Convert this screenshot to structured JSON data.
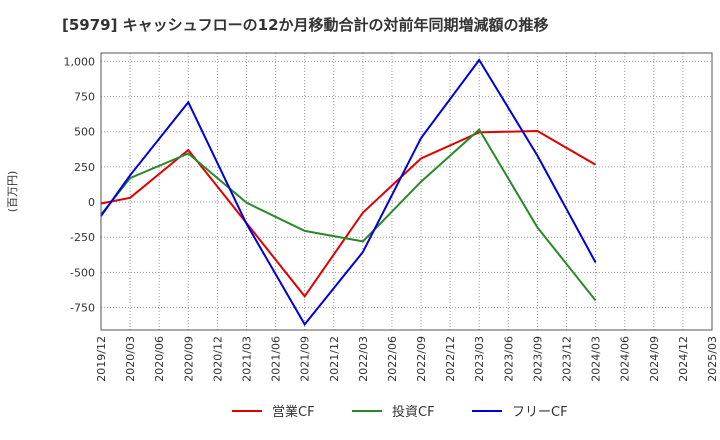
{
  "chart_data": {
    "type": "line",
    "title": "[5979]  キャッシュフローの12か月移動合計の対前年同期増減額の推移",
    "ylabel": "(百万円)",
    "xlabel": "",
    "ylim": [
      -910,
      1060
    ],
    "yticks": [
      {
        "value": 1000,
        "label": "1,000"
      },
      {
        "value": 750,
        "label": "750"
      },
      {
        "value": 500,
        "label": "500"
      },
      {
        "value": 250,
        "label": "250"
      },
      {
        "value": 0,
        "label": "0"
      },
      {
        "value": -250,
        "label": "-250"
      },
      {
        "value": -500,
        "label": "-500"
      },
      {
        "value": -750,
        "label": "-750"
      }
    ],
    "categories": [
      "2019/12",
      "2020/03",
      "2020/06",
      "2020/09",
      "2020/12",
      "2021/03",
      "2021/06",
      "2021/09",
      "2021/12",
      "2022/03",
      "2022/06",
      "2022/09",
      "2022/12",
      "2023/03",
      "2023/06",
      "2023/09",
      "2023/12",
      "2024/03",
      "2024/06",
      "2024/09",
      "2024/12",
      "2025/03"
    ],
    "grid": true,
    "legend_position": "bottom",
    "series": [
      {
        "name": "営業CF",
        "color": "#e00000",
        "points": [
          {
            "x": "2019/12",
            "y": -10
          },
          {
            "x": "2020/03",
            "y": 30
          },
          {
            "x": "2020/09",
            "y": 370
          },
          {
            "x": "2021/03",
            "y": -150
          },
          {
            "x": "2021/09",
            "y": -670
          },
          {
            "x": "2022/03",
            "y": -75
          },
          {
            "x": "2022/09",
            "y": 310
          },
          {
            "x": "2023/03",
            "y": 495
          },
          {
            "x": "2023/09",
            "y": 505
          },
          {
            "x": "2024/03",
            "y": 265
          }
        ]
      },
      {
        "name": "投資CF",
        "color": "#2a8a2a",
        "points": [
          {
            "x": "2019/12",
            "y": -90
          },
          {
            "x": "2020/03",
            "y": 170
          },
          {
            "x": "2020/09",
            "y": 345
          },
          {
            "x": "2021/03",
            "y": -5
          },
          {
            "x": "2021/09",
            "y": -205
          },
          {
            "x": "2022/03",
            "y": -280
          },
          {
            "x": "2022/09",
            "y": 145
          },
          {
            "x": "2023/03",
            "y": 515
          },
          {
            "x": "2023/09",
            "y": -180
          },
          {
            "x": "2024/03",
            "y": -700
          }
        ]
      },
      {
        "name": "フリーCF",
        "color": "#0000dd",
        "points": [
          {
            "x": "2019/12",
            "y": -100
          },
          {
            "x": "2020/03",
            "y": 190
          },
          {
            "x": "2020/09",
            "y": 710
          },
          {
            "x": "2021/03",
            "y": -155
          },
          {
            "x": "2021/09",
            "y": -870
          },
          {
            "x": "2022/03",
            "y": -355
          },
          {
            "x": "2022/09",
            "y": 455
          },
          {
            "x": "2023/03",
            "y": 1010
          },
          {
            "x": "2023/09",
            "y": 330
          },
          {
            "x": "2024/03",
            "y": -430
          }
        ]
      }
    ]
  }
}
